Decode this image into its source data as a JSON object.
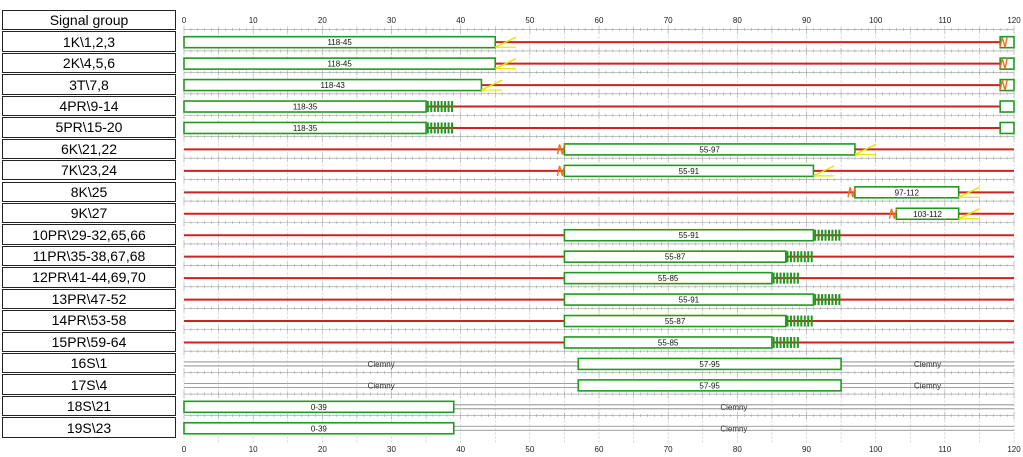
{
  "header": {
    "label": "Signal group"
  },
  "groups": [
    {
      "name": "1K\\1,2,3"
    },
    {
      "name": "2K\\4,5,6"
    },
    {
      "name": "3T\\7,8"
    },
    {
      "name": "4PR\\9-14"
    },
    {
      "name": "5PR\\15-20"
    },
    {
      "name": "6K\\21,22"
    },
    {
      "name": "7K\\23,24"
    },
    {
      "name": "8K\\25"
    },
    {
      "name": "9K\\27"
    },
    {
      "name": "10PR\\29-32,65,66"
    },
    {
      "name": "11PR\\35-38,67,68"
    },
    {
      "name": "12PR\\41-44,69,70"
    },
    {
      "name": "13PR\\47-52"
    },
    {
      "name": "14PR\\53-58"
    },
    {
      "name": "15PR\\59-64"
    },
    {
      "name": "16S\\1"
    },
    {
      "name": "17S\\4"
    },
    {
      "name": "18S\\21"
    },
    {
      "name": "19S\\23"
    }
  ],
  "chart_data": {
    "type": "signal-timing",
    "x_range": [
      0,
      120
    ],
    "x_ticks": [
      0,
      10,
      20,
      30,
      40,
      50,
      60,
      70,
      80,
      90,
      100,
      110,
      120
    ],
    "colors": {
      "green": "#1f9a1f",
      "red": "#cc2222",
      "yellow": "#e6e600",
      "orange": "#f07020",
      "dark": "#808080",
      "grid": "#b8b8b8"
    },
    "rows": [
      {
        "green": [
          [
            0,
            45
          ],
          [
            118,
            120
          ]
        ],
        "label": "118-45",
        "label_at": 22.5,
        "trans": {
          "type": "yellow",
          "from": 45,
          "to": 48
        },
        "redamber": [
          118,
          119
        ]
      },
      {
        "green": [
          [
            0,
            45
          ],
          [
            118,
            120
          ]
        ],
        "label": "118-45",
        "label_at": 22.5,
        "trans": {
          "type": "yellow",
          "from": 45,
          "to": 48
        },
        "redamber": [
          118,
          119
        ]
      },
      {
        "green": [
          [
            0,
            43
          ],
          [
            118,
            120
          ]
        ],
        "label": "118-43",
        "label_at": 21.5,
        "trans": {
          "type": "yellow",
          "from": 43,
          "to": 46
        },
        "redamber": [
          118,
          119
        ]
      },
      {
        "green": [
          [
            0,
            35
          ],
          [
            118,
            120
          ]
        ],
        "label": "118-35",
        "label_at": 17.5,
        "trans": {
          "type": "flash",
          "from": 35,
          "to": 39
        }
      },
      {
        "green": [
          [
            0,
            35
          ],
          [
            118,
            120
          ]
        ],
        "label": "118-35",
        "label_at": 17.5,
        "trans": {
          "type": "flash",
          "from": 35,
          "to": 39
        }
      },
      {
        "green": [
          [
            55,
            97
          ]
        ],
        "label": "55-97",
        "label_at": 76,
        "trans": {
          "type": "yellow",
          "from": 97,
          "to": 100
        },
        "redamber": [
          54,
          55
        ]
      },
      {
        "green": [
          [
            55,
            91
          ]
        ],
        "label": "55-91",
        "label_at": 73,
        "trans": {
          "type": "yellow",
          "from": 91,
          "to": 94
        },
        "redamber": [
          54,
          55
        ]
      },
      {
        "green": [
          [
            97,
            112
          ]
        ],
        "label": "97-112",
        "label_at": 104.5,
        "trans": {
          "type": "yellow",
          "from": 112,
          "to": 115
        },
        "redamber": [
          96,
          97
        ]
      },
      {
        "green": [
          [
            103,
            112
          ]
        ],
        "label": "103-112",
        "label_at": 107.5,
        "trans": {
          "type": "yellow",
          "from": 112,
          "to": 115
        },
        "redamber": [
          102,
          103
        ]
      },
      {
        "green": [
          [
            55,
            91
          ]
        ],
        "label": "55-91",
        "label_at": 73,
        "trans": {
          "type": "flash",
          "from": 91,
          "to": 95
        }
      },
      {
        "green": [
          [
            55,
            87
          ]
        ],
        "label": "55-87",
        "label_at": 71,
        "trans": {
          "type": "flash",
          "from": 87,
          "to": 91
        }
      },
      {
        "green": [
          [
            55,
            85
          ]
        ],
        "label": "55-85",
        "label_at": 70,
        "trans": {
          "type": "flash",
          "from": 85,
          "to": 89
        }
      },
      {
        "green": [
          [
            55,
            91
          ]
        ],
        "label": "55-91",
        "label_at": 73,
        "trans": {
          "type": "flash",
          "from": 91,
          "to": 95
        }
      },
      {
        "green": [
          [
            55,
            87
          ]
        ],
        "label": "55-87",
        "label_at": 71,
        "trans": {
          "type": "flash",
          "from": 87,
          "to": 91
        }
      },
      {
        "green": [
          [
            55,
            85
          ]
        ],
        "label": "55-85",
        "label_at": 70,
        "trans": {
          "type": "flash",
          "from": 85,
          "to": 89
        }
      },
      {
        "green": [
          [
            57,
            95
          ]
        ],
        "label": "57-95",
        "label_at": 76,
        "dark": [
          [
            0,
            57,
            "Ciemny",
            28.5
          ],
          [
            95,
            120,
            "Ciemny",
            107.5
          ]
        ]
      },
      {
        "green": [
          [
            57,
            95
          ]
        ],
        "label": "57-95",
        "label_at": 76,
        "dark": [
          [
            0,
            57,
            "Ciemny",
            28.5
          ],
          [
            95,
            120,
            "Ciemny",
            107.5
          ]
        ]
      },
      {
        "green": [
          [
            0,
            39
          ]
        ],
        "label": "0-39",
        "label_at": 19.5,
        "dark": [
          [
            39,
            120,
            "Ciemny",
            79.5
          ]
        ]
      },
      {
        "green": [
          [
            0,
            39
          ]
        ],
        "label": "0-39",
        "label_at": 19.5,
        "dark": [
          [
            39,
            120,
            "Ciemny",
            79.5
          ]
        ]
      }
    ]
  }
}
